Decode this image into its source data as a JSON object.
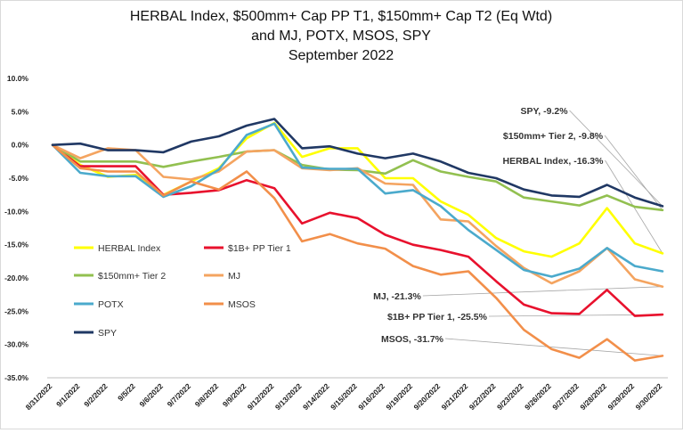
{
  "chart_data": {
    "type": "line",
    "title_lines": [
      "HERBAL Index, $500mm+ Cap PP T1, $150mm+ Cap T2  (Eq Wtd)",
      "and MJ, POTX, MSOS, SPY",
      "September 2022"
    ],
    "xlabel": "",
    "ylabel": "",
    "ylim": [
      -35,
      10
    ],
    "y_ticks": [
      "10.0%",
      "5.0%",
      "0.0%",
      "-5.0%",
      "-10.0%",
      "-15.0%",
      "-20.0%",
      "-25.0%",
      "-30.0%",
      "-35.0%"
    ],
    "y_tick_values": [
      10,
      5,
      0,
      -5,
      -10,
      -15,
      -20,
      -25,
      -30,
      -35
    ],
    "categories": [
      "8/31/2022",
      "9/1/2022",
      "9/2/2022",
      "9/5/22",
      "9/6/2022",
      "9/7/2022",
      "9/8/2022",
      "9/9/2022",
      "9/12/2022",
      "9/13/2022",
      "9/14/2022",
      "9/15/2022",
      "9/16/2022",
      "9/19/2022",
      "9/20/2022",
      "9/21/2022",
      "9/22/2022",
      "9/23/2022",
      "9/26/2022",
      "9/27/2022",
      "9/28/2022",
      "9/29/2022",
      "9/30/2022"
    ],
    "legend_position": "bottom-left",
    "grid": false,
    "series": [
      {
        "name": "HERBAL Index",
        "color": "#ffff00",
        "values": [
          0,
          -3.0,
          -4.8,
          -4.5,
          -7.5,
          -5.5,
          -3.5,
          1.0,
          3.3,
          -1.8,
          -0.5,
          -0.5,
          -5.0,
          -5.0,
          -8.5,
          -10.5,
          -14.0,
          -16.0,
          -16.8,
          -14.8,
          -9.5,
          -14.8,
          -16.3
        ]
      },
      {
        "name": "$1B+ PP Tier 1",
        "color": "#e8112d",
        "values": [
          0,
          -3.2,
          -3.2,
          -3.2,
          -7.5,
          -7.2,
          -6.8,
          -5.3,
          -6.5,
          -11.8,
          -10.2,
          -11.0,
          -13.5,
          -15.0,
          -15.8,
          -16.8,
          -20.5,
          -24.0,
          -25.3,
          -25.4,
          -21.8,
          -25.7,
          -25.5
        ]
      },
      {
        "name": "$150mm+ Tier 2",
        "color": "#92c050",
        "values": [
          0,
          -2.5,
          -2.5,
          -2.5,
          -3.3,
          -2.5,
          -1.8,
          -1.0,
          -0.8,
          -3.0,
          -3.7,
          -3.8,
          -4.3,
          -2.3,
          -4.0,
          -4.8,
          -5.5,
          -7.9,
          -8.5,
          -9.1,
          -7.6,
          -9.3,
          -9.8
        ]
      },
      {
        "name": "MJ",
        "color": "#f4a460",
        "values": [
          0,
          -2.0,
          -0.5,
          -0.8,
          -4.8,
          -5.2,
          -4.0,
          -1.0,
          -0.8,
          -3.5,
          -3.8,
          -3.5,
          -5.8,
          -6.0,
          -11.2,
          -11.5,
          -15.2,
          -18.5,
          -20.8,
          -19.0,
          -15.5,
          -20.2,
          -21.3
        ]
      },
      {
        "name": "POTX",
        "color": "#4baacc",
        "values": [
          0,
          -4.2,
          -4.7,
          -4.7,
          -7.8,
          -6.2,
          -3.7,
          1.5,
          3.2,
          -3.4,
          -3.6,
          -3.6,
          -7.3,
          -6.8,
          -9.2,
          -12.8,
          -15.8,
          -18.8,
          -19.8,
          -18.6,
          -15.5,
          -18.2,
          -19.0
        ]
      },
      {
        "name": "MSOS",
        "color": "#f28f4a",
        "values": [
          0,
          -3.5,
          -4.0,
          -4.0,
          -7.6,
          -5.5,
          -6.7,
          -4.0,
          -8.0,
          -14.5,
          -13.4,
          -14.8,
          -15.6,
          -18.2,
          -19.5,
          -19.0,
          -23.0,
          -27.8,
          -30.7,
          -32.0,
          -29.2,
          -32.4,
          -31.7
        ]
      },
      {
        "name": "SPY",
        "color": "#203864",
        "values": [
          0,
          0.2,
          -0.8,
          -0.8,
          -1.1,
          0.5,
          1.3,
          2.9,
          3.9,
          -0.5,
          -0.2,
          -1.3,
          -2.0,
          -1.3,
          -2.5,
          -4.2,
          -5.0,
          -6.7,
          -7.6,
          -7.8,
          -6.0,
          -7.9,
          -9.2
        ]
      }
    ],
    "annotations": [
      {
        "text": "SPY, -9.2%",
        "series": "SPY"
      },
      {
        "text": "$150mm+ Tier 2, -9.8%",
        "series": "$150mm+ Tier 2"
      },
      {
        "text": "HERBAL Index, -16.3%",
        "series": "HERBAL Index"
      },
      {
        "text": "MJ, -21.3%",
        "series": "MJ"
      },
      {
        "text": "$1B+ PP Tier 1, -25.5%",
        "series": "$1B+ PP Tier 1"
      },
      {
        "text": "MSOS, -31.7%",
        "series": "MSOS"
      }
    ]
  }
}
